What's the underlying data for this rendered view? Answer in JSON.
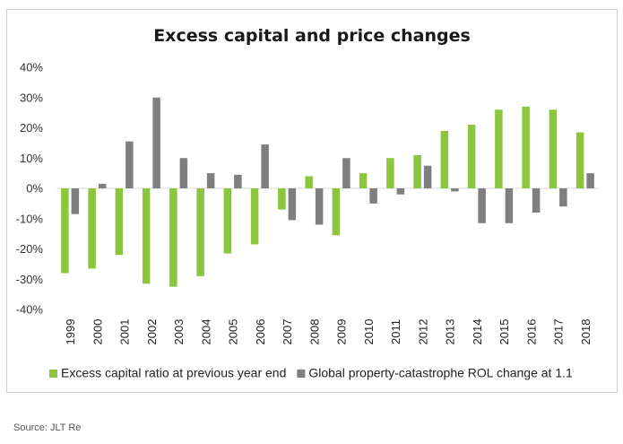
{
  "chart_data": {
    "type": "bar",
    "title": "Excess capital and price changes",
    "categories": [
      "1999",
      "2000",
      "2001",
      "2002",
      "2003",
      "2004",
      "2005",
      "2006",
      "2007",
      "2008",
      "2009",
      "2010",
      "2011",
      "2012",
      "2013",
      "2014",
      "2015",
      "2016",
      "2017",
      "2018"
    ],
    "series": [
      {
        "name": "Excess capital ratio at previous year end",
        "color": "#8cc63f",
        "values": [
          -28,
          -26.5,
          -22,
          -31.5,
          -32.5,
          -29,
          -21.5,
          -18.5,
          -7,
          4,
          -15.5,
          5,
          10,
          11,
          19,
          21,
          26,
          27,
          26,
          18.5
        ]
      },
      {
        "name": "Global property-catastrophe ROL change at 1.1",
        "color": "#7f7f7f",
        "values": [
          -8.5,
          1.5,
          15.5,
          30,
          10,
          5,
          4.5,
          14.5,
          -10.5,
          -12,
          10,
          -5,
          -2,
          7.5,
          -1,
          -11.5,
          -11.5,
          -8,
          -6,
          5
        ]
      }
    ],
    "ylim": [
      -40,
      40
    ],
    "yticks": [
      "40%",
      "30%",
      "20%",
      "10%",
      "0%",
      "-10%",
      "-20%",
      "-30%",
      "-40%"
    ],
    "ytick_values": [
      40,
      30,
      20,
      10,
      0,
      -10,
      -20,
      -30,
      -40
    ],
    "grid": false,
    "legend_position": "bottom"
  },
  "source": "Source: JLT Re"
}
